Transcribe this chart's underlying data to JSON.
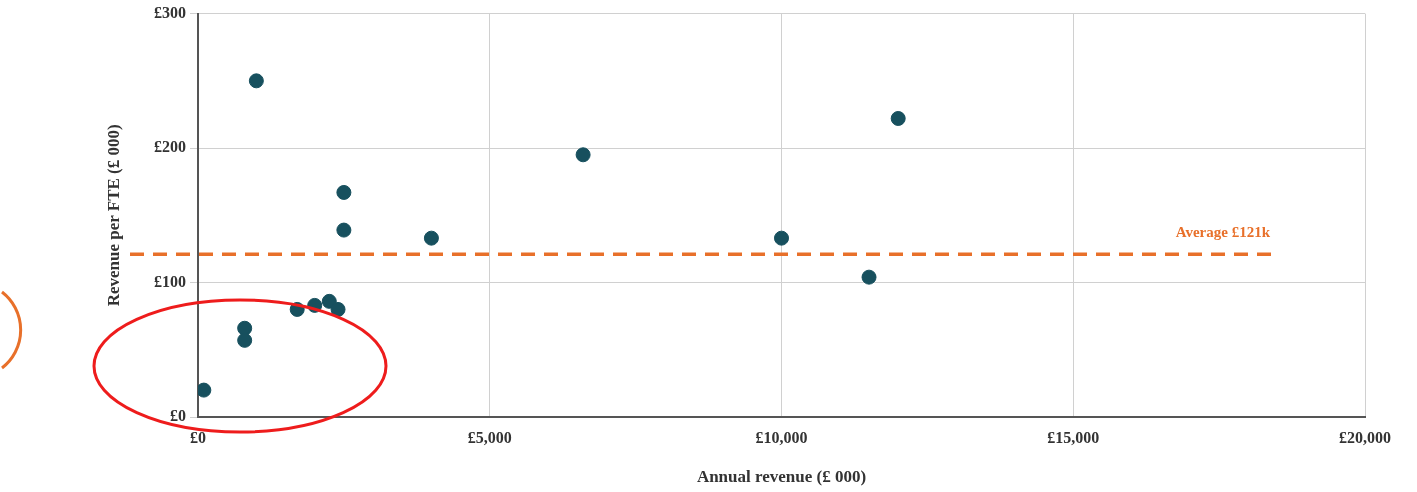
{
  "chart_data": {
    "type": "scatter",
    "xlabel": "Annual revenue (£ 000)",
    "ylabel": "Revenue per FTE (£ 000)",
    "x": [
      100,
      800,
      800,
      1000,
      1700,
      2000,
      2250,
      2400,
      2500,
      2500,
      4000,
      6600,
      10000,
      11500,
      12000
    ],
    "series": [
      {
        "color": "#17505e",
        "values": [
          20,
          66,
          57,
          250,
          80,
          83,
          86,
          80,
          167,
          139,
          133,
          195,
          133,
          104,
          222
        ]
      }
    ],
    "xlim": [
      0,
      20000
    ],
    "xticks": [
      {
        "value": 0,
        "label": "£0"
      },
      {
        "value": 5000,
        "label": "£5,000"
      },
      {
        "value": 10000,
        "label": "£10,000"
      },
      {
        "value": 15000,
        "label": "£15,000"
      },
      {
        "value": 20000,
        "label": "£20,000"
      }
    ],
    "ylim": [
      0,
      300
    ],
    "yticks": [
      {
        "value": 0,
        "label": "£0"
      },
      {
        "value": 100,
        "label": "£100"
      },
      {
        "value": 200,
        "label": "£200"
      },
      {
        "value": 300,
        "label": "£300"
      }
    ],
    "ref_lines": [
      {
        "axis": "y",
        "value": 121,
        "label": "Average £121k",
        "color": "#e8702a",
        "line_style": "dashed"
      }
    ],
    "grid": true,
    "legend": false,
    "marker": "circle"
  }
}
